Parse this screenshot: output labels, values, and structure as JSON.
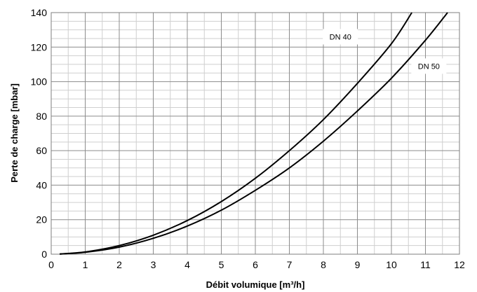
{
  "chart_data": {
    "type": "line",
    "xlabel": "Débit volumique [m³/h]",
    "ylabel": "Perte de charge [mbar]",
    "xlim": [
      0,
      12
    ],
    "ylim": [
      0,
      140
    ],
    "x_ticks": [
      "0",
      "1",
      "2",
      "3",
      "4",
      "5",
      "6",
      "7",
      "8",
      "9",
      "10",
      "11",
      "12"
    ],
    "y_ticks": [
      "0",
      "20",
      "40",
      "60",
      "80",
      "100",
      "120",
      "140"
    ],
    "grid": true,
    "minor_grid_x_step": 0.5,
    "minor_grid_y_step": 5,
    "series": [
      {
        "name": "DN 40",
        "color": "#000000",
        "x": [
          0.25,
          1,
          2,
          3,
          4,
          5,
          6,
          7,
          8,
          9,
          10,
          10.6
        ],
        "y": [
          0.1,
          1.3,
          5,
          11,
          19.5,
          30.5,
          44,
          60,
          78,
          99,
          122,
          140
        ]
      },
      {
        "name": "DN 50",
        "color": "#000000",
        "x": [
          0.25,
          1,
          2,
          3,
          4,
          5,
          6,
          7,
          8,
          9,
          10,
          11,
          11.65
        ],
        "y": [
          0.1,
          1.1,
          4.1,
          9.2,
          16.3,
          25.5,
          37,
          50,
          65.5,
          83,
          102,
          124,
          140
        ]
      }
    ]
  }
}
